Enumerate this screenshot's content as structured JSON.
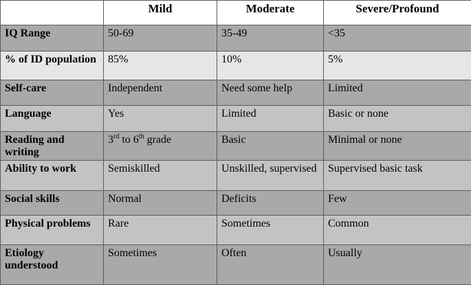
{
  "headers": [
    "",
    "Mild",
    "Moderate",
    "Severe/Profound"
  ],
  "rows": [
    {
      "label": "IQ Range",
      "mild": "50-69",
      "moderate": "35-49",
      "severe": "<35"
    },
    {
      "label": "% of ID population",
      "mild": "85%",
      "moderate": "10%",
      "severe": "5%"
    },
    {
      "label": "Self-care",
      "mild": "Independent",
      "moderate": "Need some help",
      "severe": "Limited"
    },
    {
      "label": "Language",
      "mild": "Yes",
      "moderate": "Limited",
      "severe": "Basic or none"
    },
    {
      "label": "Reading and writing",
      "mild": {
        "pre1": "3",
        "sup1": "rd",
        "mid": " to 6",
        "sup2": "th",
        "post": " grade"
      },
      "moderate": "Basic",
      "severe": "Minimal or none"
    },
    {
      "label": "Ability to work",
      "mild": "Semiskilled",
      "moderate": "Unskilled, supervised",
      "severe": "Supervised basic task"
    },
    {
      "label": "Social skills",
      "mild": "Normal",
      "moderate": "Deficits",
      "severe": "Few"
    },
    {
      "label": "Physical problems",
      "mild": "Rare",
      "moderate": "Sometimes",
      "severe": "Common"
    },
    {
      "label": "Etiology understood",
      "mild": "Sometimes",
      "moderate": "Often",
      "severe": "Usually"
    }
  ]
}
